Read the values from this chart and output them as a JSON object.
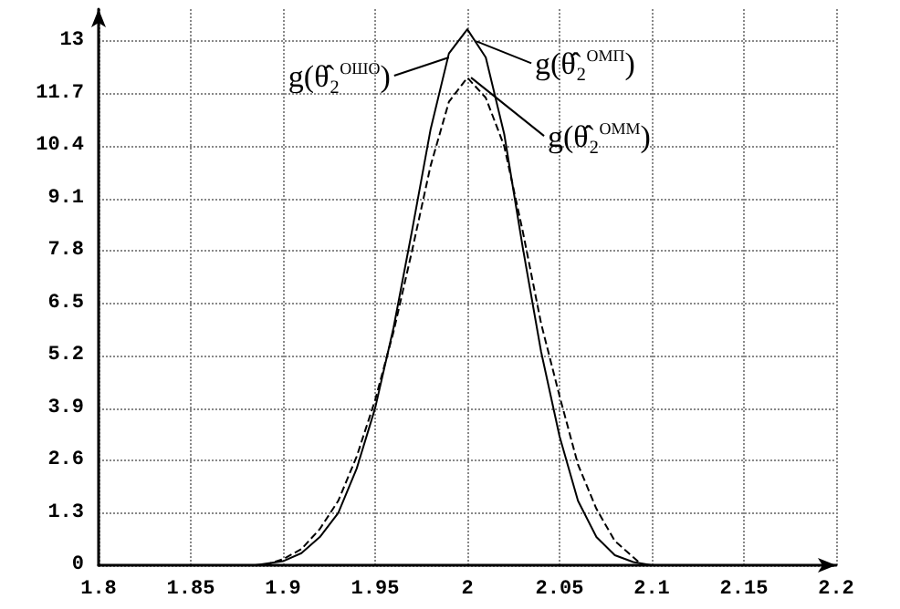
{
  "chart_data": {
    "type": "line",
    "xlim": [
      1.8,
      2.2
    ],
    "xticks": [
      1.8,
      1.85,
      1.9,
      1.95,
      2,
      2.05,
      2.1,
      2.15,
      2.2
    ],
    "ylim": [
      0,
      13.8
    ],
    "yticks": [
      0,
      1.3,
      2.6,
      3.9,
      5.2,
      6.5,
      7.8,
      9.1,
      10.4,
      11.7,
      13
    ],
    "grid": true,
    "marker": "none",
    "series": [
      {
        "color": "#000000",
        "line_style": "solid",
        "x": [
          1.8,
          1.885,
          1.9,
          1.91,
          1.92,
          1.93,
          1.94,
          1.95,
          1.96,
          1.97,
          1.98,
          1.99,
          2.0,
          2.01,
          2.02,
          2.03,
          2.04,
          2.05,
          2.06,
          2.07,
          2.08,
          2.09,
          2.1,
          2.18
        ],
        "values": [
          0,
          0,
          0.1,
          0.3,
          0.7,
          1.3,
          2.4,
          3.9,
          5.9,
          8.3,
          10.8,
          12.7,
          13.3,
          12.6,
          10.7,
          7.9,
          5.3,
          3.2,
          1.6,
          0.7,
          0.25,
          0.08,
          0,
          0
        ]
      },
      {
        "color": "#000000",
        "line_style": "dashed",
        "x": [
          1.89,
          1.9,
          1.91,
          1.92,
          1.93,
          1.94,
          1.95,
          1.96,
          1.97,
          1.98,
          1.99,
          2.0,
          2.01,
          2.02,
          2.03,
          2.04,
          2.05,
          2.06,
          2.07,
          2.08,
          2.09,
          2.095
        ],
        "values": [
          0,
          0.15,
          0.4,
          0.9,
          1.6,
          2.7,
          4.1,
          5.8,
          7.8,
          9.9,
          11.5,
          12.1,
          11.6,
          10.4,
          8.3,
          6.0,
          4.2,
          2.5,
          1.4,
          0.6,
          0.2,
          0
        ]
      }
    ],
    "annotations": [
      {
        "text": "g(θ̂₂$^{ОШО}$)",
        "x": 1.99,
        "y": 12.6
      },
      {
        "text": "g(θ̂₂$^{ОМП}$)",
        "x": 2.005,
        "y": 13.0
      },
      {
        "text": "g(θ̂₂$^{ОММ}$)",
        "x": 2.002,
        "y": 12.1
      }
    ]
  }
}
